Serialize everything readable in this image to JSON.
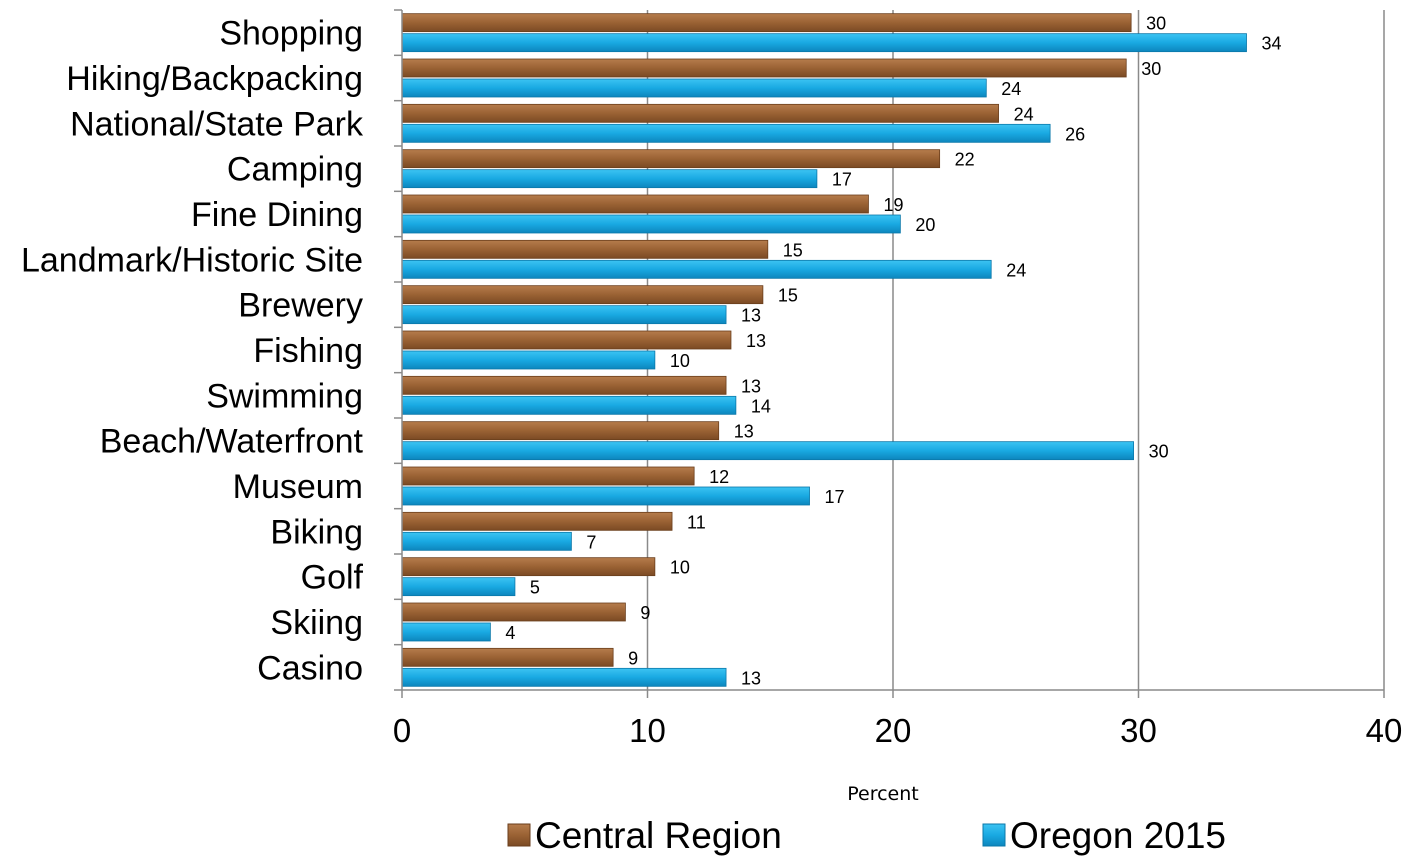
{
  "chart_data": {
    "type": "bar",
    "orientation": "horizontal",
    "title": "",
    "xlabel": "Percent",
    "ylabel": "",
    "xlim": [
      0,
      40
    ],
    "x_ticks": [
      "0",
      "10",
      "20",
      "30",
      "40"
    ],
    "grid": "vertical",
    "legend_position": "bottom",
    "categories": [
      "Shopping",
      "Hiking/Backpacking",
      "National/State Park",
      "Camping",
      "Fine Dining",
      "Landmark/Historic Site",
      "Brewery",
      "Fishing",
      "Swimming",
      "Beach/Waterfront",
      "Museum",
      "Biking",
      "Golf",
      "Skiing",
      "Casino"
    ],
    "series": [
      {
        "name": "Central Region",
        "color": "#a0683a",
        "values": [
          29.7,
          29.5,
          24.3,
          21.9,
          19.0,
          14.9,
          14.7,
          13.4,
          13.2,
          12.9,
          11.9,
          11.0,
          10.3,
          9.1,
          8.6
        ],
        "labels": [
          "30",
          "30",
          "24",
          "22",
          "19",
          "15",
          "15",
          "13",
          "13",
          "13",
          "12",
          "11",
          "10",
          "9",
          "9"
        ]
      },
      {
        "name": "Oregon 2015",
        "color": "#1aabe3",
        "values": [
          34.4,
          23.8,
          26.4,
          16.9,
          20.3,
          24.0,
          13.2,
          10.3,
          13.6,
          29.8,
          16.6,
          6.9,
          4.6,
          3.6,
          13.2
        ],
        "labels": [
          "34",
          "24",
          "26",
          "17",
          "20",
          "24",
          "13",
          "10",
          "14",
          "30",
          "17",
          "7",
          "5",
          "4",
          "13"
        ]
      }
    ]
  }
}
